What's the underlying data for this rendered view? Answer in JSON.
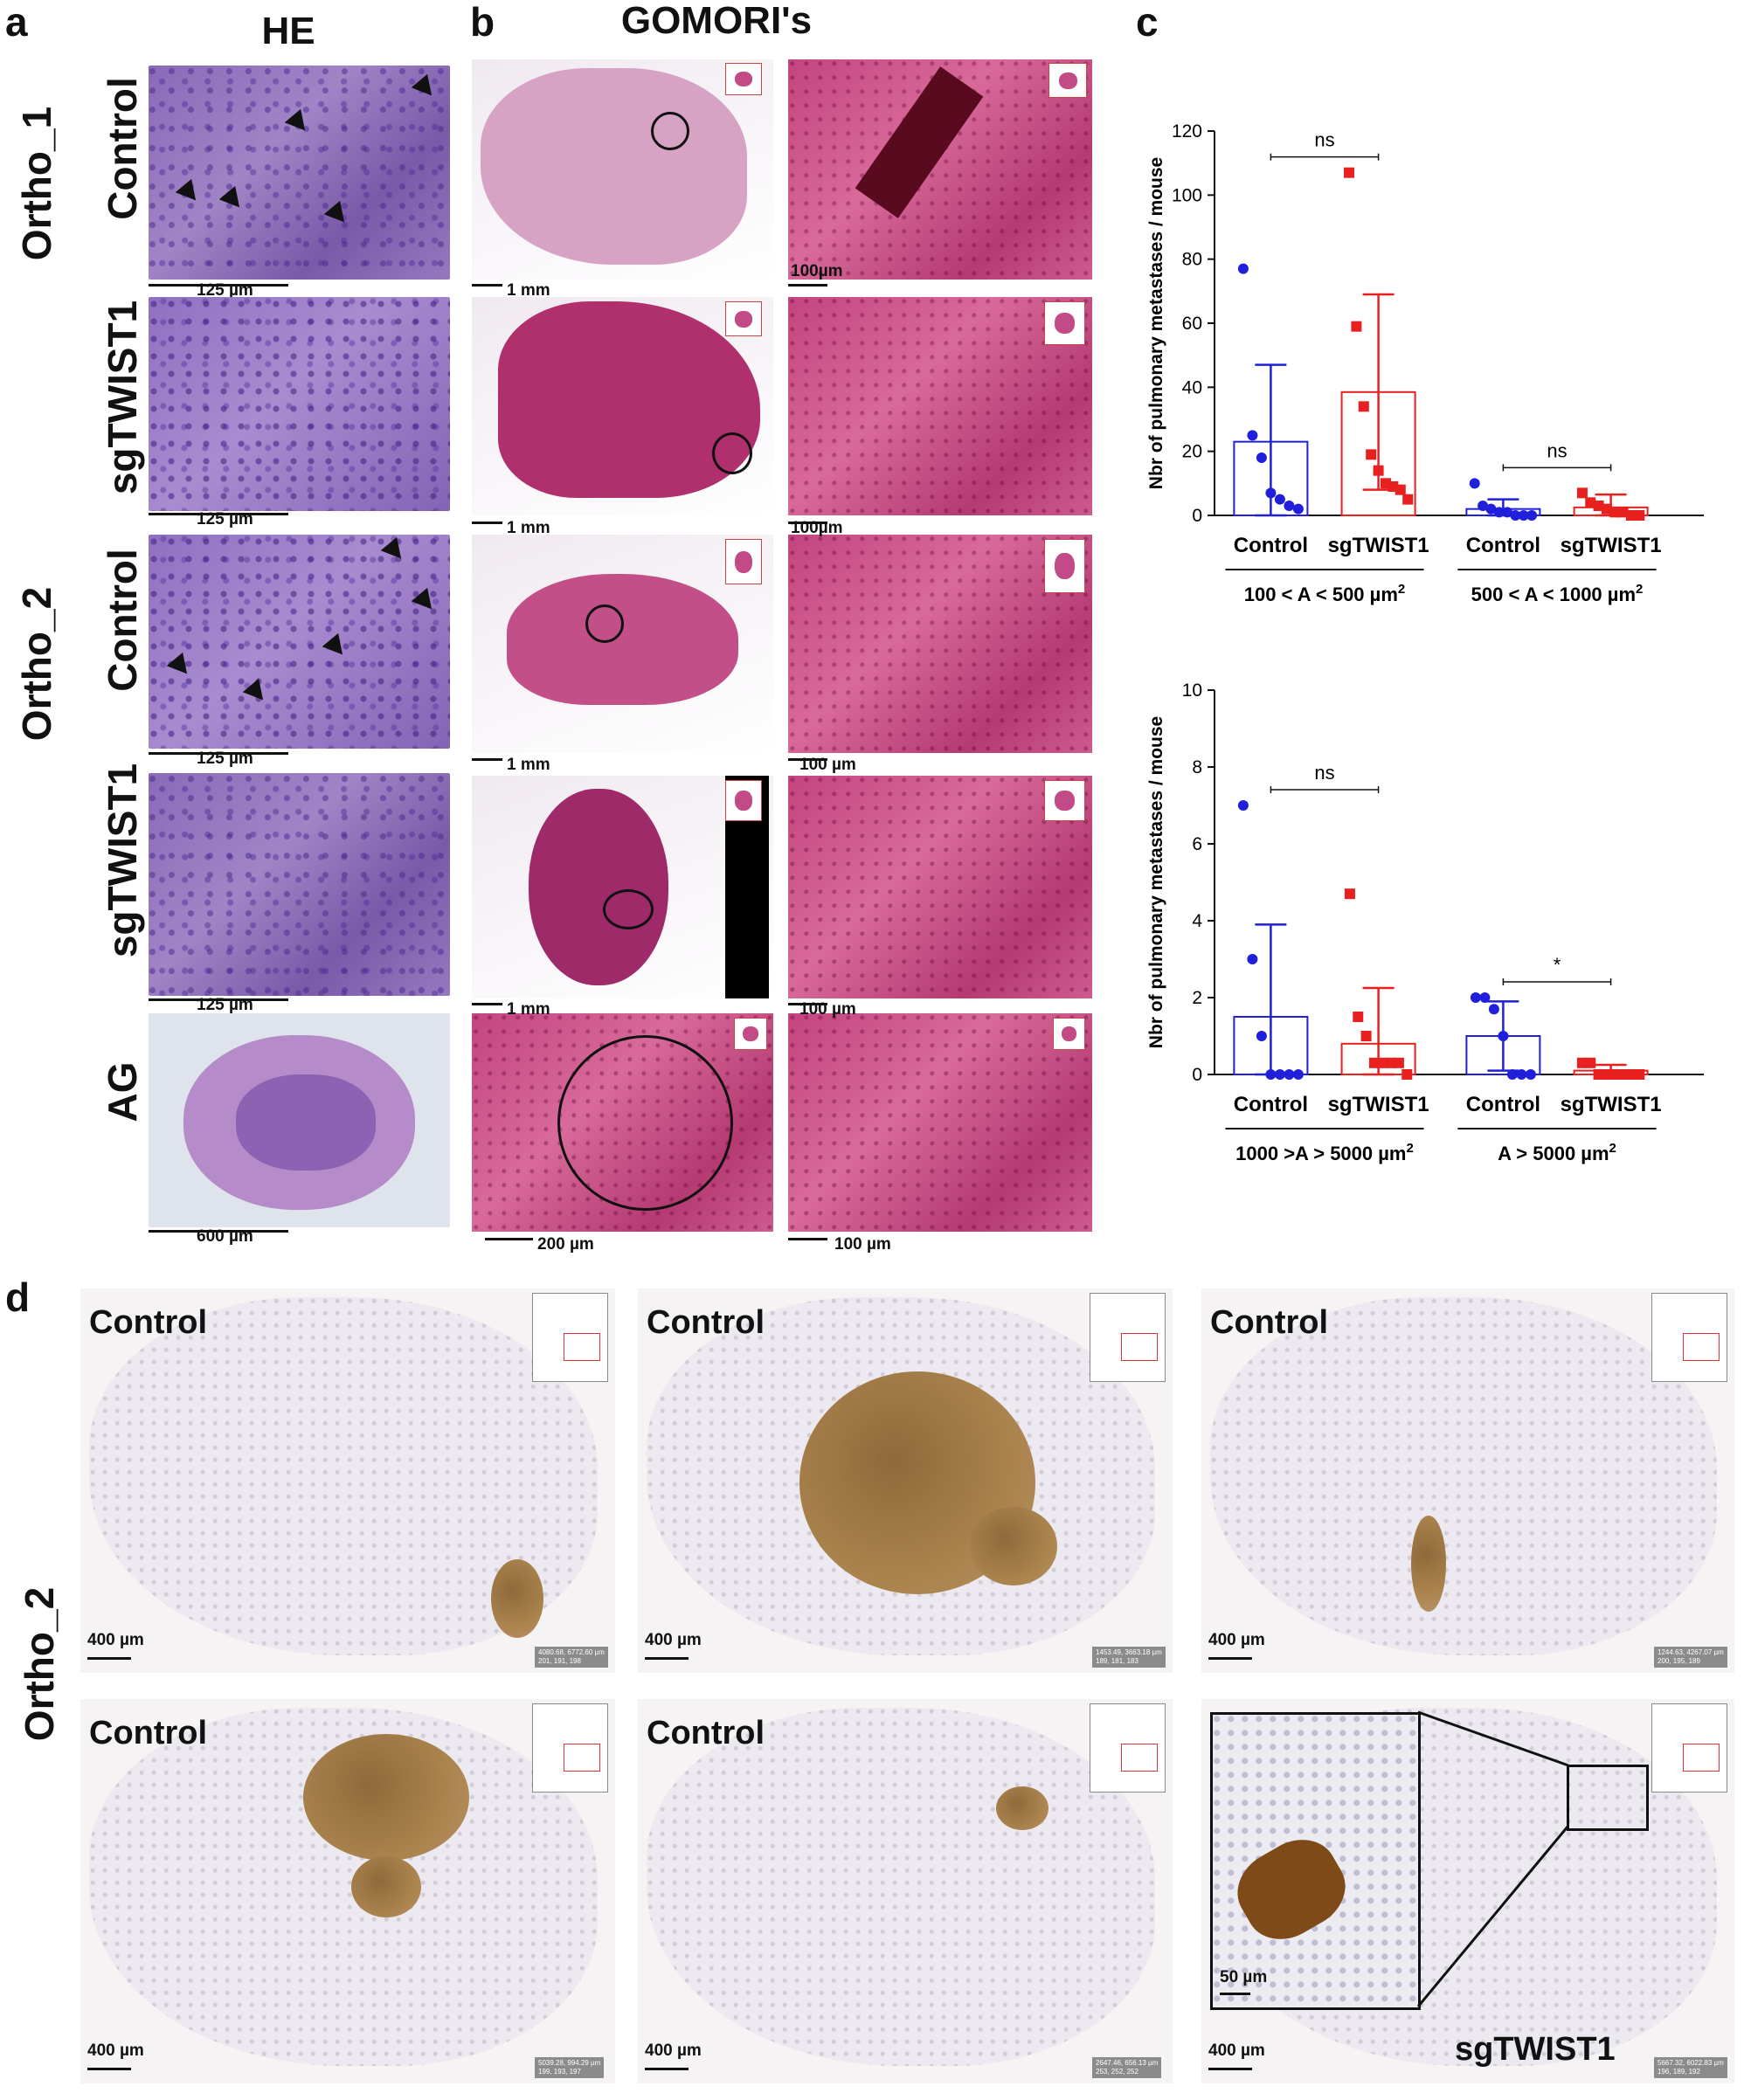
{
  "panels": {
    "a": {
      "letter": "a",
      "title": "HE",
      "ortho1": "Ortho_1",
      "ortho2": "Ortho_2",
      "rows": [
        "Control",
        "sgTWIST1",
        "Control",
        "sgTWIST1",
        "AG"
      ],
      "scales": [
        "125 µm",
        "125 µm",
        "125 µm",
        "125 µm",
        "600 µm"
      ]
    },
    "b": {
      "letter": "b",
      "title": "GOMORI's",
      "left_scales": [
        "1 mm",
        "1 mm",
        "1 mm",
        "1 mm",
        "200 µm"
      ],
      "right_scales": [
        "100µm",
        "100µm",
        "100 µm",
        "100 µm",
        "100 µm"
      ]
    },
    "c": {
      "letter": "c"
    },
    "d": {
      "letter": "d",
      "row_label": "Ortho_2",
      "tiles": [
        {
          "label": "Control",
          "scale": "400 µm",
          "info": "4080.68, 6772.60 µm\n201, 191, 198"
        },
        {
          "label": "Control",
          "scale": "400 µm",
          "info": "1453.49, 3663.18 µm\n189, 181, 183"
        },
        {
          "label": "Control",
          "scale": "400 µm",
          "info": "1244.63, 4267.07 µm\n200, 195, 189"
        },
        {
          "label": "Control",
          "scale": "400 µm",
          "info": "5039.28, 994.29 µm\n199, 193, 197"
        },
        {
          "label": "Control",
          "scale": "400 µm",
          "info": "2647.46, 656.13 µm\n253, 252, 252"
        },
        {
          "label": "sgTWIST1",
          "scale": "400 µm",
          "inset_scale": "50 µm",
          "info": "5667.32, 6022.83 µm\n196, 189, 192"
        }
      ]
    }
  },
  "chart_data": [
    {
      "type": "bar",
      "ylabel": "Nbr of pulmonary metastases / mouse",
      "ylim": [
        0,
        120
      ],
      "yticks": [
        0,
        20,
        40,
        60,
        80,
        100,
        120
      ],
      "categories": [
        "Control",
        "sgTWIST1",
        "Control",
        "sgTWIST1"
      ],
      "groups": [
        "100 < A < 500 µm",
        "500 < A < 1000 µm"
      ],
      "series_colors": [
        "#1f1fdc",
        "#e8201f",
        "#1f1fdc",
        "#e8201f"
      ],
      "means": [
        23,
        38.5,
        2,
        2.5
      ],
      "sd": [
        24,
        30.5,
        3,
        4
      ],
      "points": [
        [
          77,
          25,
          18,
          7,
          5,
          3,
          2
        ],
        [
          107,
          59,
          34,
          19,
          14,
          10,
          9,
          8,
          5
        ],
        [
          10,
          3,
          2,
          1,
          1,
          0,
          0,
          0
        ],
        [
          7,
          4,
          3,
          2,
          1,
          1,
          0,
          0
        ]
      ],
      "significance": [
        {
          "label": "ns"
        },
        {
          "label": "ns"
        }
      ]
    },
    {
      "type": "bar",
      "ylabel": "Nbr of pulmonary metastases / mouse",
      "ylim": [
        0,
        10
      ],
      "yticks": [
        0,
        2,
        4,
        6,
        8,
        10
      ],
      "categories": [
        "Control",
        "sgTWIST1",
        "Control",
        "sgTWIST1"
      ],
      "groups": [
        "1000 >A > 5000 µm",
        "A > 5000 µm"
      ],
      "series_colors": [
        "#1f1fdc",
        "#e8201f",
        "#1f1fdc",
        "#e8201f"
      ],
      "means": [
        1.5,
        0.8,
        1.0,
        0.1
      ],
      "sd": [
        2.4,
        1.45,
        0.9,
        0.15
      ],
      "points": [
        [
          7,
          3,
          1,
          0,
          0,
          0,
          0
        ],
        [
          4.7,
          1.5,
          1,
          0.3,
          0.3,
          0.3,
          0.3,
          0
        ],
        [
          2,
          2,
          1.7,
          1,
          0,
          0,
          0
        ],
        [
          0.3,
          0.3,
          0,
          0,
          0,
          0,
          0,
          0
        ]
      ],
      "significance": [
        {
          "label": "ns"
        },
        {
          "label": "*"
        }
      ]
    }
  ],
  "units": {
    "sup2": "2"
  }
}
